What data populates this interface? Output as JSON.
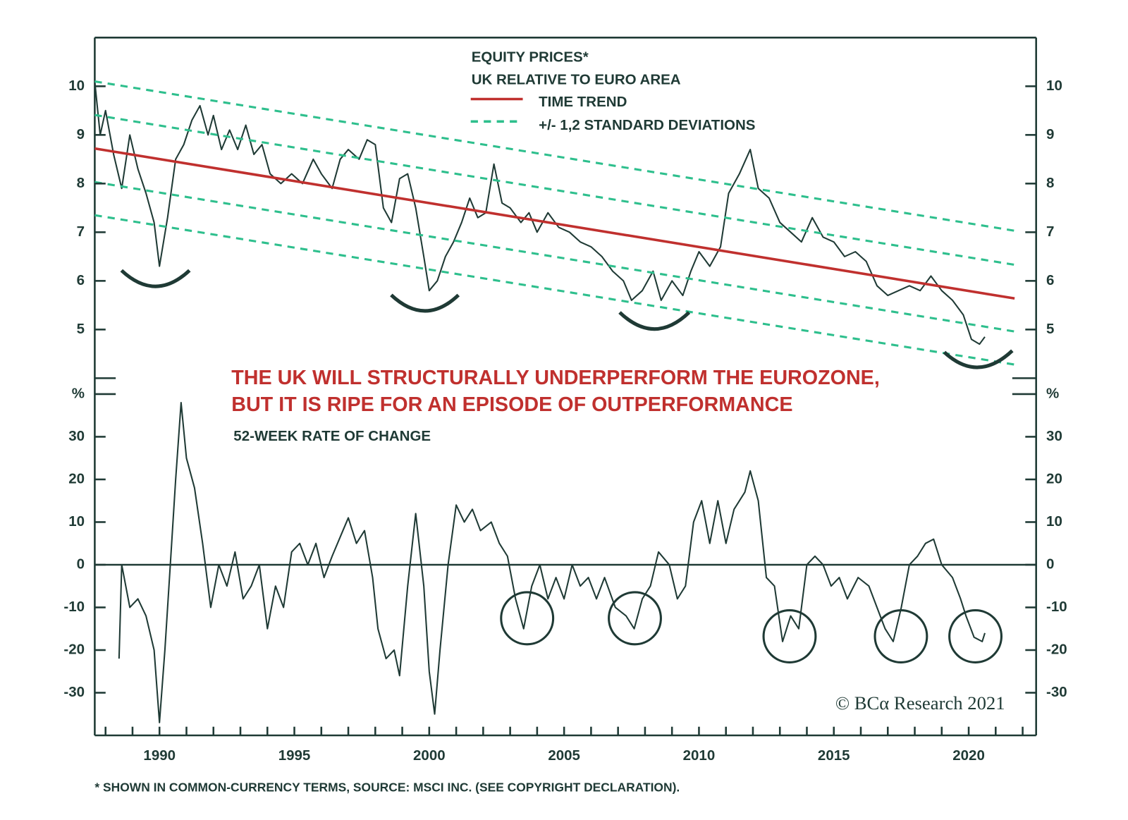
{
  "headline": [
    "THE UK WILL STRUCTURALLY UNDERPERFORM THE EUROZONE,",
    "BUT IT IS RIPE FOR AN EPISODE OF OUTPERFORMANCE"
  ],
  "credit": "© BCα Research 2021",
  "footnote": "* SHOWN IN COMMON-CURRENCY TERMS, SOURCE: MSCI INC. (SEE COPYRIGHT DECLARATION).",
  "chart_data": [
    {
      "type": "line",
      "title": "EQUITY PRICES*",
      "subtitle": "UK RELATIVE TO EURO AREA",
      "xlim": [
        1987.6,
        2022.5
      ],
      "ylim": [
        4,
        11
      ],
      "yticks": [
        5,
        6,
        7,
        8,
        9,
        10
      ],
      "series": [
        {
          "color": "#1f3a35",
          "x": [
            1987.6,
            1987.8,
            1988.0,
            1988.3,
            1988.6,
            1988.9,
            1989.2,
            1989.5,
            1989.8,
            1990.0,
            1990.3,
            1990.6,
            1990.9,
            1991.2,
            1991.5,
            1991.8,
            1992.0,
            1992.3,
            1992.6,
            1992.9,
            1993.2,
            1993.5,
            1993.8,
            1994.1,
            1994.5,
            1994.9,
            1995.3,
            1995.7,
            1996.0,
            1996.4,
            1996.7,
            1997.0,
            1997.4,
            1997.7,
            1998.0,
            1998.3,
            1998.6,
            1998.9,
            1999.2,
            1999.5,
            1999.8,
            2000.0,
            2000.3,
            2000.6,
            2000.9,
            2001.2,
            2001.5,
            2001.8,
            2002.1,
            2002.4,
            2002.7,
            2003.0,
            2003.4,
            2003.7,
            2004.0,
            2004.4,
            2004.8,
            2005.2,
            2005.6,
            2006.0,
            2006.4,
            2006.8,
            2007.2,
            2007.5,
            2007.9,
            2008.3,
            2008.6,
            2009.0,
            2009.4,
            2009.7,
            2010.0,
            2010.4,
            2010.8,
            2011.1,
            2011.5,
            2011.9,
            2012.2,
            2012.6,
            2013.0,
            2013.4,
            2013.8,
            2014.2,
            2014.6,
            2015.0,
            2015.4,
            2015.8,
            2016.2,
            2016.6,
            2017.0,
            2017.4,
            2017.8,
            2018.2,
            2018.6,
            2019.0,
            2019.4,
            2019.8,
            2020.1,
            2020.4,
            2020.6
          ],
          "values": [
            10.1,
            9.0,
            9.5,
            8.6,
            7.9,
            9.0,
            8.3,
            7.8,
            7.2,
            6.3,
            7.3,
            8.5,
            8.8,
            9.3,
            9.6,
            9.0,
            9.4,
            8.7,
            9.1,
            8.7,
            9.2,
            8.6,
            8.8,
            8.2,
            8.0,
            8.2,
            8.0,
            8.5,
            8.2,
            7.9,
            8.5,
            8.7,
            8.5,
            8.9,
            8.8,
            7.5,
            7.2,
            8.1,
            8.2,
            7.5,
            6.5,
            5.8,
            6.0,
            6.5,
            6.8,
            7.2,
            7.7,
            7.3,
            7.4,
            8.4,
            7.6,
            7.5,
            7.2,
            7.4,
            7.0,
            7.4,
            7.1,
            7.0,
            6.8,
            6.7,
            6.5,
            6.2,
            6.0,
            5.6,
            5.8,
            6.2,
            5.6,
            6.0,
            5.7,
            6.2,
            6.6,
            6.3,
            6.7,
            7.8,
            8.2,
            8.7,
            7.9,
            7.7,
            7.2,
            7.0,
            6.8,
            7.3,
            6.9,
            6.8,
            6.5,
            6.6,
            6.4,
            5.9,
            5.7,
            5.8,
            5.9,
            5.8,
            6.1,
            5.8,
            5.6,
            5.3,
            4.8,
            4.7,
            4.85
          ]
        },
        {
          "name": "TIME TREND",
          "color": "#c0302e",
          "x": [
            1987.6,
            2021.7
          ],
          "values": [
            8.72,
            5.64
          ]
        },
        {
          "name": "+/- 1,2 STANDARD DEVIATIONS",
          "color": "#2ebf8d",
          "dashed": true,
          "x": [
            1987.6,
            2021.7
          ],
          "values": [
            [
              10.1,
              7.03
            ],
            [
              9.41,
              6.33
            ],
            [
              8.03,
              4.96
            ],
            [
              7.35,
              4.28
            ]
          ]
        }
      ]
    },
    {
      "type": "line",
      "title": "52-WEEK RATE OF CHANGE",
      "xlim": [
        1987.6,
        2022.5
      ],
      "ylim": [
        -40,
        40
      ],
      "xticks": [
        1990,
        1995,
        2000,
        2005,
        2010,
        2015,
        2020
      ],
      "xticks_minor": [
        1988,
        1989,
        1990,
        1991,
        1992,
        1993,
        1994,
        1995,
        1996,
        1997,
        1998,
        1999,
        2000,
        2001,
        2002,
        2003,
        2004,
        2005,
        2006,
        2007,
        2008,
        2009,
        2010,
        2011,
        2012,
        2013,
        2014,
        2015,
        2016,
        2017,
        2018,
        2019,
        2020,
        2021,
        2022
      ],
      "yticks": [
        {
          "value": 40,
          "label": "%"
        },
        30,
        20,
        10,
        0,
        -10,
        -20,
        -30
      ],
      "reference_line": 0,
      "series": [
        {
          "color": "#1f3a35",
          "x": [
            1988.5,
            1988.6,
            1988.9,
            1989.2,
            1989.5,
            1989.8,
            1990.0,
            1990.2,
            1990.4,
            1990.6,
            1990.8,
            1991.0,
            1991.3,
            1991.6,
            1991.9,
            1992.2,
            1992.5,
            1992.8,
            1993.1,
            1993.4,
            1993.7,
            1994.0,
            1994.3,
            1994.6,
            1994.9,
            1995.2,
            1995.5,
            1995.8,
            1996.1,
            1996.4,
            1996.8,
            1997.0,
            1997.3,
            1997.6,
            1997.9,
            1998.1,
            1998.4,
            1998.7,
            1998.9,
            1999.2,
            1999.5,
            1999.8,
            2000.0,
            2000.2,
            2000.4,
            2000.7,
            2001.0,
            2001.3,
            2001.6,
            2001.9,
            2002.3,
            2002.6,
            2002.9,
            2003.2,
            2003.5,
            2003.8,
            2004.1,
            2004.4,
            2004.7,
            2005.0,
            2005.3,
            2005.6,
            2005.9,
            2006.2,
            2006.5,
            2006.9,
            2007.3,
            2007.6,
            2007.9,
            2008.2,
            2008.5,
            2008.9,
            2009.2,
            2009.5,
            2009.8,
            2010.1,
            2010.4,
            2010.7,
            2011.0,
            2011.3,
            2011.7,
            2011.9,
            2012.2,
            2012.5,
            2012.8,
            2013.1,
            2013.4,
            2013.7,
            2014.0,
            2014.3,
            2014.6,
            2014.9,
            2015.2,
            2015.5,
            2015.9,
            2016.3,
            2016.6,
            2016.9,
            2017.2,
            2017.5,
            2017.8,
            2018.1,
            2018.4,
            2018.7,
            2019.0,
            2019.4,
            2019.7,
            2019.9,
            2020.2,
            2020.5,
            2020.6
          ],
          "values": [
            -22,
            0,
            -10,
            -8,
            -12,
            -20,
            -37,
            -20,
            0,
            20,
            38,
            25,
            18,
            5,
            -10,
            0,
            -5,
            3,
            -8,
            -5,
            0,
            -15,
            -5,
            -10,
            3,
            5,
            0,
            5,
            -3,
            2,
            8,
            11,
            5,
            8,
            -3,
            -15,
            -22,
            -20,
            -26,
            -5,
            12,
            -5,
            -25,
            -35,
            -20,
            0,
            14,
            10,
            13,
            8,
            10,
            5,
            2,
            -8,
            -15,
            -5,
            0,
            -8,
            -3,
            -8,
            0,
            -5,
            -3,
            -8,
            -3,
            -10,
            -12,
            -15,
            -8,
            -5,
            3,
            0,
            -8,
            -5,
            10,
            15,
            5,
            15,
            5,
            13,
            17,
            22,
            15,
            -3,
            -5,
            -18,
            -12,
            -15,
            0,
            2,
            0,
            -5,
            -3,
            -8,
            -3,
            -5,
            -10,
            -15,
            -18,
            -10,
            0,
            2,
            5,
            6,
            0,
            -3,
            -8,
            -12,
            -17,
            -18,
            -16
          ]
        }
      ]
    }
  ]
}
